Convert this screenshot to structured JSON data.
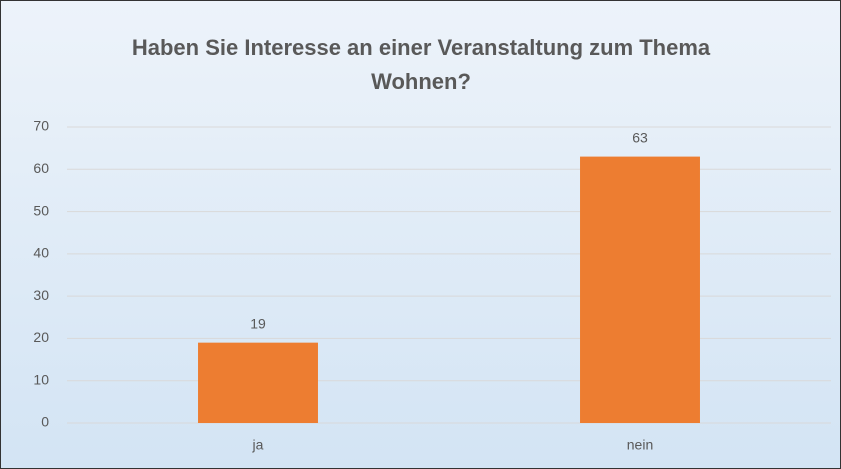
{
  "chart_data": {
    "type": "bar",
    "title": "Haben Sie Interesse an einer Veranstaltung zum Thema Wohnen?",
    "categories": [
      "ja",
      "nein"
    ],
    "values": [
      19,
      63
    ],
    "color": "#ed7d31",
    "ylim": [
      0,
      70
    ],
    "yticks": [
      0,
      10,
      20,
      30,
      40,
      50,
      60,
      70
    ],
    "grid": true
  }
}
